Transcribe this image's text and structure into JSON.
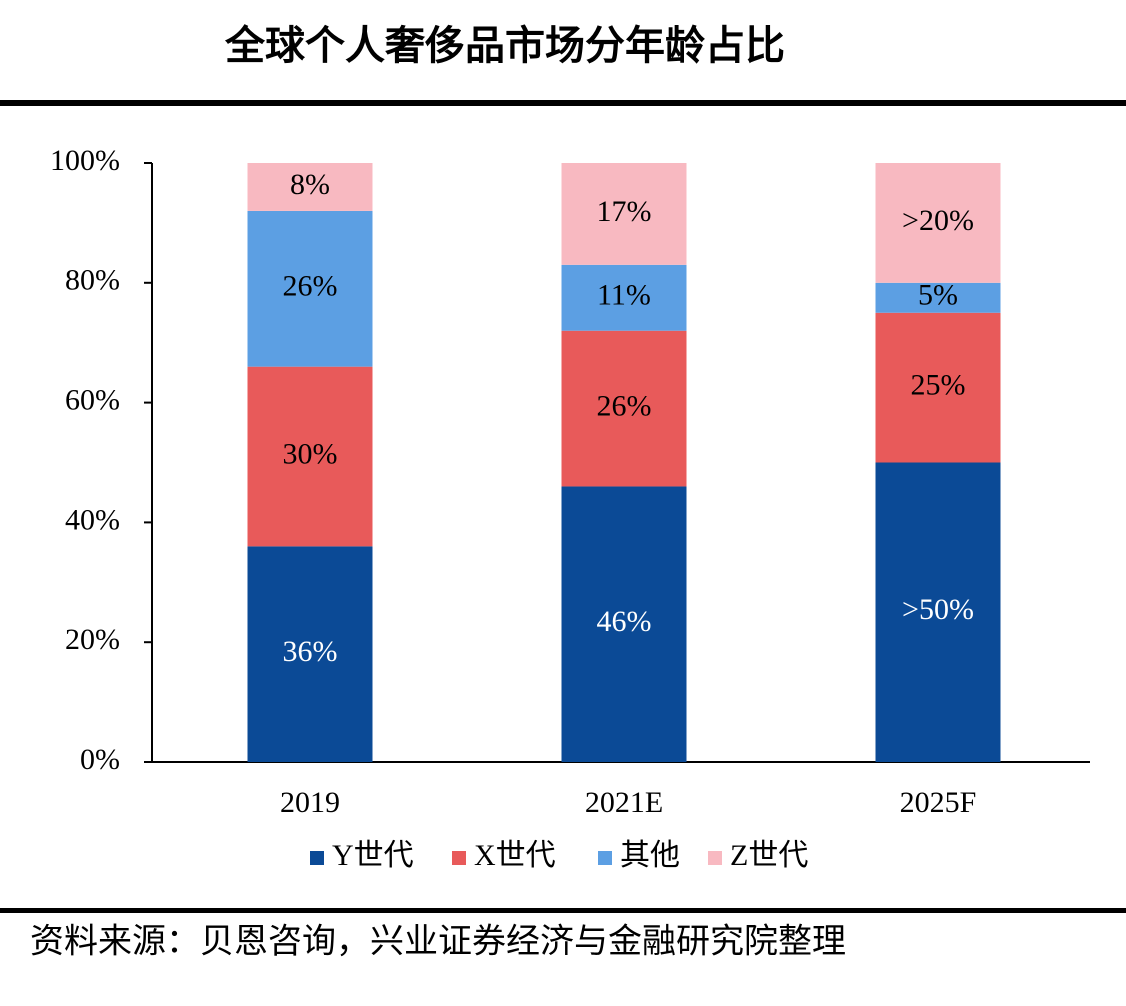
{
  "chart_data": {
    "type": "stacked_bar",
    "title": "全球个人奢侈品市场分年龄占比",
    "categories": [
      "2019",
      "2021E",
      "2025F"
    ],
    "series": [
      {
        "name": "Y世代",
        "color": "#0b4a96",
        "values": [
          36,
          46,
          50
        ],
        "value_labels": [
          "36%",
          "46%",
          ">50%"
        ]
      },
      {
        "name": "X世代",
        "color": "#e85a5a",
        "values": [
          30,
          26,
          25
        ],
        "value_labels": [
          "30%",
          "26%",
          "25%"
        ]
      },
      {
        "name": "其他",
        "color": "#5c9fe3",
        "values": [
          26,
          11,
          5
        ],
        "value_labels": [
          "26%",
          "11%",
          "5%"
        ]
      },
      {
        "name": "Z世代",
        "color": "#f8b9c1",
        "values": [
          8,
          17,
          20
        ],
        "value_labels": [
          "8%",
          "17%",
          ">20%"
        ]
      }
    ],
    "ylim": [
      0,
      100
    ],
    "yticks": [
      {
        "value": 0,
        "label": "0%"
      },
      {
        "value": 20,
        "label": "20%"
      },
      {
        "value": 40,
        "label": "40%"
      },
      {
        "value": 60,
        "label": "60%"
      },
      {
        "value": 80,
        "label": "80%"
      },
      {
        "value": 100,
        "label": "100%"
      }
    ],
    "grid": false,
    "legend": "bottom",
    "source": "资料来源：贝恩咨询，兴业证券经济与金融研究院整理"
  }
}
